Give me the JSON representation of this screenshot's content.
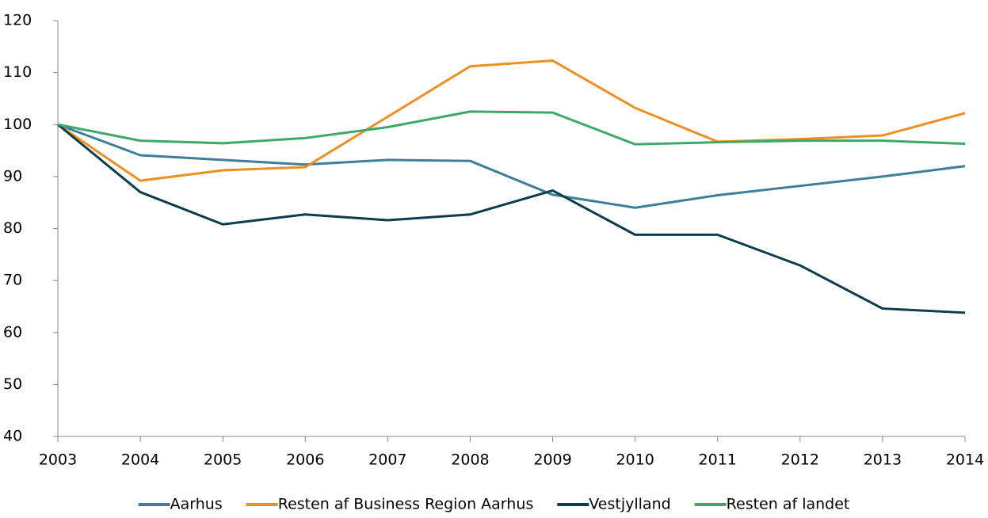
{
  "chart_data": {
    "type": "line",
    "categories": [
      "2003",
      "2004",
      "2005",
      "2006",
      "2007",
      "2008",
      "2009",
      "2010",
      "2011",
      "2012",
      "2013",
      "2014"
    ],
    "series": [
      {
        "name": "Aarhus",
        "color": "#3d7f96",
        "values": [
          100,
          94.1,
          93.2,
          92.3,
          93.2,
          93.0,
          86.5,
          84.0,
          86.4,
          88.2,
          90.0,
          92.0
        ]
      },
      {
        "name": "Resten af Business Region Aarhus",
        "color": "#ef8f22",
        "values": [
          100,
          89.2,
          91.2,
          91.8,
          101.5,
          111.2,
          112.3,
          103.2,
          96.7,
          97.2,
          97.9,
          102.2
        ]
      },
      {
        "name": "Vestjylland",
        "color": "#0d3c4c",
        "values": [
          100,
          87.0,
          80.8,
          82.7,
          81.6,
          82.7,
          87.3,
          78.8,
          78.8,
          72.9,
          64.6,
          63.8
        ]
      },
      {
        "name": "Resten af landet",
        "color": "#3da86a",
        "values": [
          100,
          96.9,
          96.4,
          97.4,
          99.5,
          102.5,
          102.3,
          96.2,
          96.6,
          96.9,
          96.9,
          96.3
        ]
      }
    ],
    "ylim": [
      40,
      120
    ],
    "yticks": [
      40,
      50,
      60,
      70,
      80,
      90,
      100,
      110,
      120
    ],
    "legend": "bottom"
  }
}
